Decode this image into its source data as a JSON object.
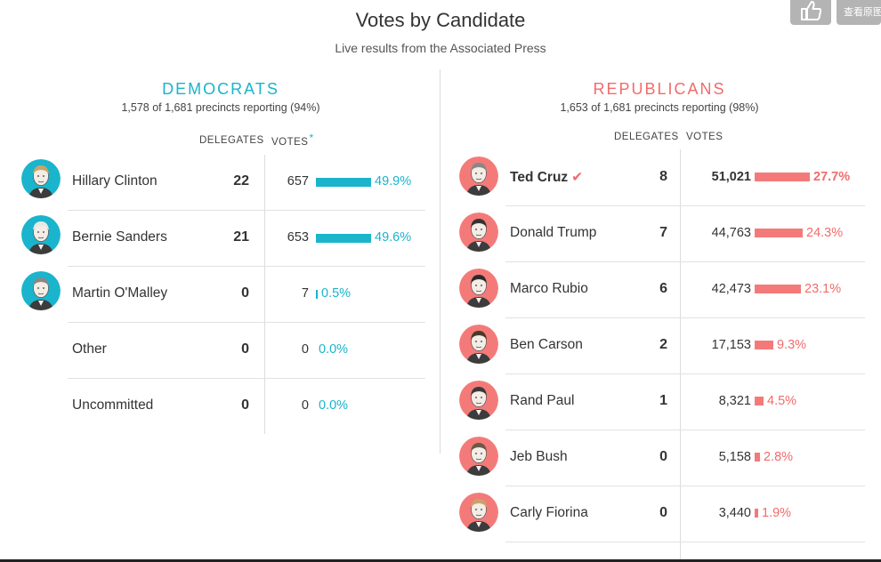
{
  "title": "Votes by Candidate",
  "subtitle": "Live results from the Associated Press",
  "widgets": {
    "like_icon": "thumbs-up-icon",
    "original_label": "查看原图"
  },
  "democrats": {
    "name": "DEMOCRATS",
    "reporting": "1,578 of 1,681 precincts reporting (94%)",
    "delegates_header": "DELEGATES",
    "votes_header": "VOTES",
    "votes_header_mark": "*",
    "accent_color": "#1ab4cc",
    "candidates": [
      {
        "name": "Hillary Clinton",
        "delegates": "22",
        "votes": "657",
        "percent": "49.9%",
        "share": 0.499,
        "avatar_bg": "#1ab4cc",
        "has_avatar": true
      },
      {
        "name": "Bernie Sanders",
        "delegates": "21",
        "votes": "653",
        "percent": "49.6%",
        "share": 0.496,
        "avatar_bg": "#1ab4cc",
        "has_avatar": true
      },
      {
        "name": "Martin O'Malley",
        "delegates": "0",
        "votes": "7",
        "percent": "0.5%",
        "share": 0.005,
        "avatar_bg": "#1ab4cc",
        "has_avatar": true
      },
      {
        "name": "Other",
        "delegates": "0",
        "votes": "0",
        "percent": "0.0%",
        "share": 0.0,
        "has_avatar": false
      },
      {
        "name": "Uncommitted",
        "delegates": "0",
        "votes": "0",
        "percent": "0.0%",
        "share": 0.0,
        "has_avatar": false
      }
    ]
  },
  "republicans": {
    "name": "REPUBLICANS",
    "reporting": "1,653 of 1,681 precincts reporting (98%)",
    "delegates_header": "DELEGATES",
    "votes_header": "VOTES",
    "accent_color": "#f26b6b",
    "candidates": [
      {
        "name": "Ted Cruz",
        "winner": true,
        "check": "✔",
        "delegates": "8",
        "votes": "51,021",
        "percent": "27.7%",
        "share": 0.277,
        "avatar_bg": "#f47a7a"
      },
      {
        "name": "Donald Trump",
        "delegates": "7",
        "votes": "44,763",
        "percent": "24.3%",
        "share": 0.243,
        "avatar_bg": "#f47a7a"
      },
      {
        "name": "Marco Rubio",
        "delegates": "6",
        "votes": "42,473",
        "percent": "23.1%",
        "share": 0.231,
        "avatar_bg": "#f47a7a"
      },
      {
        "name": "Ben Carson",
        "delegates": "2",
        "votes": "17,153",
        "percent": "9.3%",
        "share": 0.093,
        "avatar_bg": "#f47a7a"
      },
      {
        "name": "Rand Paul",
        "delegates": "1",
        "votes": "8,321",
        "percent": "4.5%",
        "share": 0.045,
        "avatar_bg": "#f47a7a"
      },
      {
        "name": "Jeb Bush",
        "delegates": "0",
        "votes": "5,158",
        "percent": "2.8%",
        "share": 0.028,
        "avatar_bg": "#f47a7a"
      },
      {
        "name": "Carly Fiorina",
        "delegates": "0",
        "votes": "3,440",
        "percent": "1.9%",
        "share": 0.019,
        "avatar_bg": "#f47a7a"
      }
    ]
  }
}
